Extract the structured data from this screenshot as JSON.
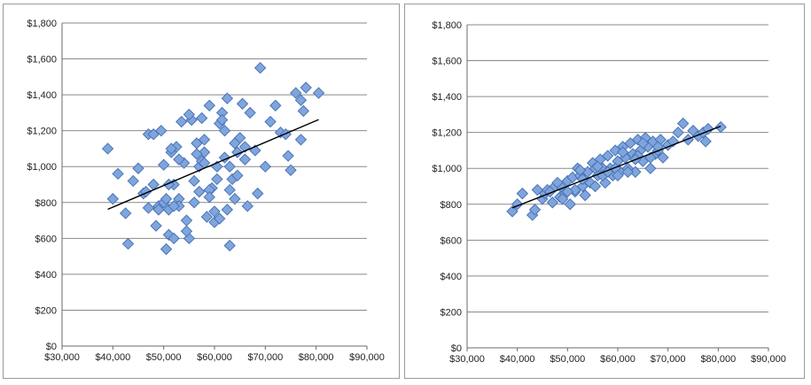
{
  "chart_data": [
    {
      "type": "scatter",
      "title": "",
      "xlabel": "",
      "ylabel": "",
      "xlim": [
        30000,
        90000
      ],
      "ylim": [
        0,
        1800
      ],
      "x_ticks": [
        30000,
        40000,
        50000,
        60000,
        70000,
        80000,
        90000
      ],
      "y_ticks": [
        0,
        200,
        400,
        600,
        800,
        1000,
        1200,
        1400,
        1600,
        1800
      ],
      "x_tick_labels": [
        "$30,000",
        "$40,000",
        "$50,000",
        "$60,000",
        "$70,000",
        "$80,000",
        "$90,000"
      ],
      "y_tick_labels": [
        "$0",
        "$200",
        "$400",
        "$600",
        "$800",
        "$1,000",
        "$1,200",
        "$1,400",
        "$1,600",
        "$1,800"
      ],
      "grid": "horizontal",
      "legend": "none",
      "marker_color": "#7fa5dc",
      "marker_edge": "#4a74b8",
      "trendline": {
        "x": [
          39000,
          80500
        ],
        "y": [
          762,
          1262
        ],
        "color": "#000000"
      },
      "x": [
        39000,
        40000,
        41000,
        42500,
        43000,
        45000,
        46000,
        47000,
        48000,
        48500,
        49000,
        49500,
        50000,
        50000,
        50500,
        51000,
        51000,
        51500,
        52000,
        52000,
        52500,
        53000,
        53500,
        54000,
        54500,
        55000,
        55500,
        56000,
        56500,
        57000,
        57000,
        57500,
        58000,
        58000,
        58500,
        59000,
        59500,
        60000,
        60500,
        61000,
        61000,
        61500,
        62000,
        62500,
        63000,
        63000,
        63500,
        64000,
        64500,
        65000,
        65500,
        66000,
        66500,
        67000,
        68000,
        69000,
        70000,
        71000,
        72000,
        73000,
        74000,
        75000,
        76000,
        77000,
        77500,
        78000,
        80500,
        44000,
        47000,
        49000,
        50500,
        51500,
        53000,
        55000,
        57500,
        59000,
        60500,
        62000,
        62500,
        64000,
        66000,
        68500,
        74500,
        77000,
        48000,
        53000,
        56000,
        59000,
        61500,
        64500,
        58000,
        56500,
        52000,
        46500,
        63000,
        60000,
        54500,
        51000
      ],
      "y": [
        1100,
        820,
        960,
        740,
        570,
        990,
        850,
        1180,
        900,
        670,
        780,
        1200,
        1010,
        800,
        540,
        760,
        620,
        1080,
        600,
        900,
        1110,
        820,
        1250,
        1020,
        700,
        600,
        1260,
        800,
        1130,
        860,
        1000,
        1270,
        1150,
        1080,
        720,
        1340,
        880,
        690,
        1000,
        710,
        1240,
        1300,
        1050,
        1380,
        560,
        1000,
        930,
        820,
        1080,
        1160,
        1350,
        1040,
        780,
        1300,
        1090,
        1550,
        1000,
        1250,
        1340,
        1190,
        1180,
        980,
        1410,
        1370,
        1310,
        1440,
        1410,
        920,
        770,
        760,
        820,
        1100,
        1040,
        1290,
        1030,
        870,
        930,
        1200,
        760,
        1130,
        1110,
        850,
        1060,
        1150,
        1180,
        780,
        920,
        830,
        1260,
        950,
        1020,
        1070,
        780,
        860,
        870,
        750,
        640,
        900
      ]
    },
    {
      "type": "scatter",
      "title": "",
      "xlabel": "",
      "ylabel": "",
      "xlim": [
        30000,
        90000
      ],
      "ylim": [
        0,
        1800
      ],
      "x_ticks": [
        30000,
        40000,
        50000,
        60000,
        70000,
        80000,
        90000
      ],
      "y_ticks": [
        0,
        200,
        400,
        600,
        800,
        1000,
        1200,
        1400,
        1600,
        1800
      ],
      "x_tick_labels": [
        "$30,000",
        "$40,000",
        "$50,000",
        "$60,000",
        "$70,000",
        "$80,000",
        "$90,000"
      ],
      "y_tick_labels": [
        "$0",
        "$200",
        "$400",
        "$600",
        "$800",
        "$1,000",
        "$1,200",
        "$1,400",
        "$1,600",
        "$1,800"
      ],
      "grid": "horizontal",
      "legend": "none",
      "marker_color": "#7fa5dc",
      "marker_edge": "#4a74b8",
      "trendline": {
        "x": [
          39000,
          80500
        ],
        "y": [
          780,
          1235
        ],
        "color": "#000000"
      },
      "x": [
        39000,
        40000,
        41000,
        43000,
        43500,
        44000,
        45000,
        45500,
        46000,
        47000,
        47500,
        48000,
        48500,
        49000,
        49500,
        50000,
        50500,
        51000,
        51500,
        52000,
        52500,
        53000,
        53500,
        54000,
        54500,
        55000,
        55500,
        56000,
        56500,
        57000,
        57500,
        58000,
        58500,
        59000,
        59500,
        60000,
        60500,
        61000,
        61500,
        62000,
        62500,
        63000,
        63500,
        64000,
        64500,
        65000,
        65500,
        66000,
        66500,
        67000,
        67500,
        68000,
        68500,
        69000,
        70000,
        71000,
        72000,
        73000,
        74000,
        75000,
        76000,
        77000,
        77500,
        78000,
        80500,
        46500,
        49000,
        51500,
        53000,
        55500,
        57000,
        59500,
        62000,
        64000,
        66500,
        68000,
        56000,
        58000,
        61000,
        63500,
        52500,
        50000,
        60000,
        65000
      ],
      "y": [
        760,
        800,
        860,
        740,
        770,
        880,
        830,
        860,
        880,
        810,
        900,
        920,
        840,
        890,
        860,
        930,
        800,
        950,
        870,
        1000,
        960,
        900,
        850,
        980,
        920,
        1030,
        900,
        960,
        1050,
        1000,
        920,
        1070,
        1000,
        960,
        1100,
        1040,
        980,
        1120,
        1060,
        1000,
        1140,
        1080,
        980,
        1160,
        1100,
        1040,
        1170,
        1120,
        1000,
        1150,
        1080,
        1100,
        1160,
        1060,
        1130,
        1150,
        1200,
        1250,
        1160,
        1210,
        1180,
        1200,
        1150,
        1220,
        1230,
        870,
        830,
        880,
        940,
        1000,
        960,
        1000,
        980,
        1070,
        1060,
        1120,
        1010,
        980,
        1090,
        1050,
        990,
        870,
        960,
        1140
      ]
    }
  ]
}
